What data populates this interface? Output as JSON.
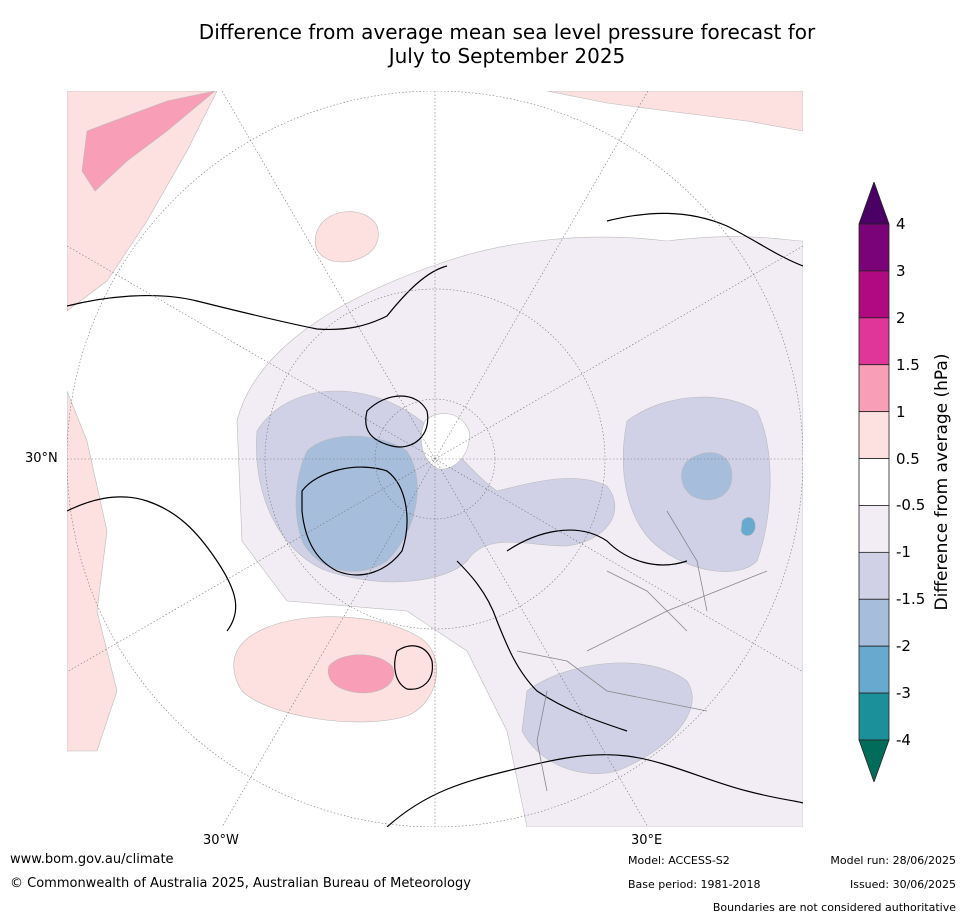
{
  "title": {
    "line1": "Difference from average mean sea level pressure forecast for",
    "line2": "July to September 2025"
  },
  "map": {
    "projection": "north-polar-stereographic",
    "graticule_labels": {
      "lat_30n": "30°N",
      "lon_30w": "30°W",
      "lon_30e": "30°E"
    }
  },
  "colorbar": {
    "title": "Difference from average (hPa)",
    "ticks": [
      "4",
      "3",
      "2",
      "1.5",
      "1",
      "0.5",
      "-0.5",
      "-1",
      "-1.5",
      "-2",
      "-3",
      "-4"
    ],
    "bins": [
      {
        "range": "> 4",
        "color": "#4b0066"
      },
      {
        "range": "3 to 4",
        "color": "#7a0477"
      },
      {
        "range": "2 to 3",
        "color": "#b10a80"
      },
      {
        "range": "1.5 to 2",
        "color": "#e0369a"
      },
      {
        "range": "1 to 1.5",
        "color": "#f89eb6"
      },
      {
        "range": "0.5 to 1",
        "color": "#fde0e0"
      },
      {
        "range": "-0.5 to 0.5",
        "color": "#ffffff"
      },
      {
        "range": "-1 to -0.5",
        "color": "#f2edf5"
      },
      {
        "range": "-1.5 to -1",
        "color": "#d0d1e6"
      },
      {
        "range": "-2 to -1.5",
        "color": "#a6bddb"
      },
      {
        "range": "-3 to -2",
        "color": "#67a9cf"
      },
      {
        "range": "-4 to -3",
        "color": "#1c9099"
      },
      {
        "range": "< -4",
        "color": "#016c59"
      }
    ]
  },
  "footer": {
    "website": "www.bom.gov.au/climate",
    "copyright": "© Commonwealth of Australia 2025, Australian Bureau of Meteorology",
    "model": "Model: ACCESS-S2",
    "base_period": "Base period: 1981-2018",
    "model_run": "Model run: 28/06/2025",
    "issued": "Issued: 30/06/2025",
    "disclaimer": "Boundaries are not considered authoritative"
  }
}
